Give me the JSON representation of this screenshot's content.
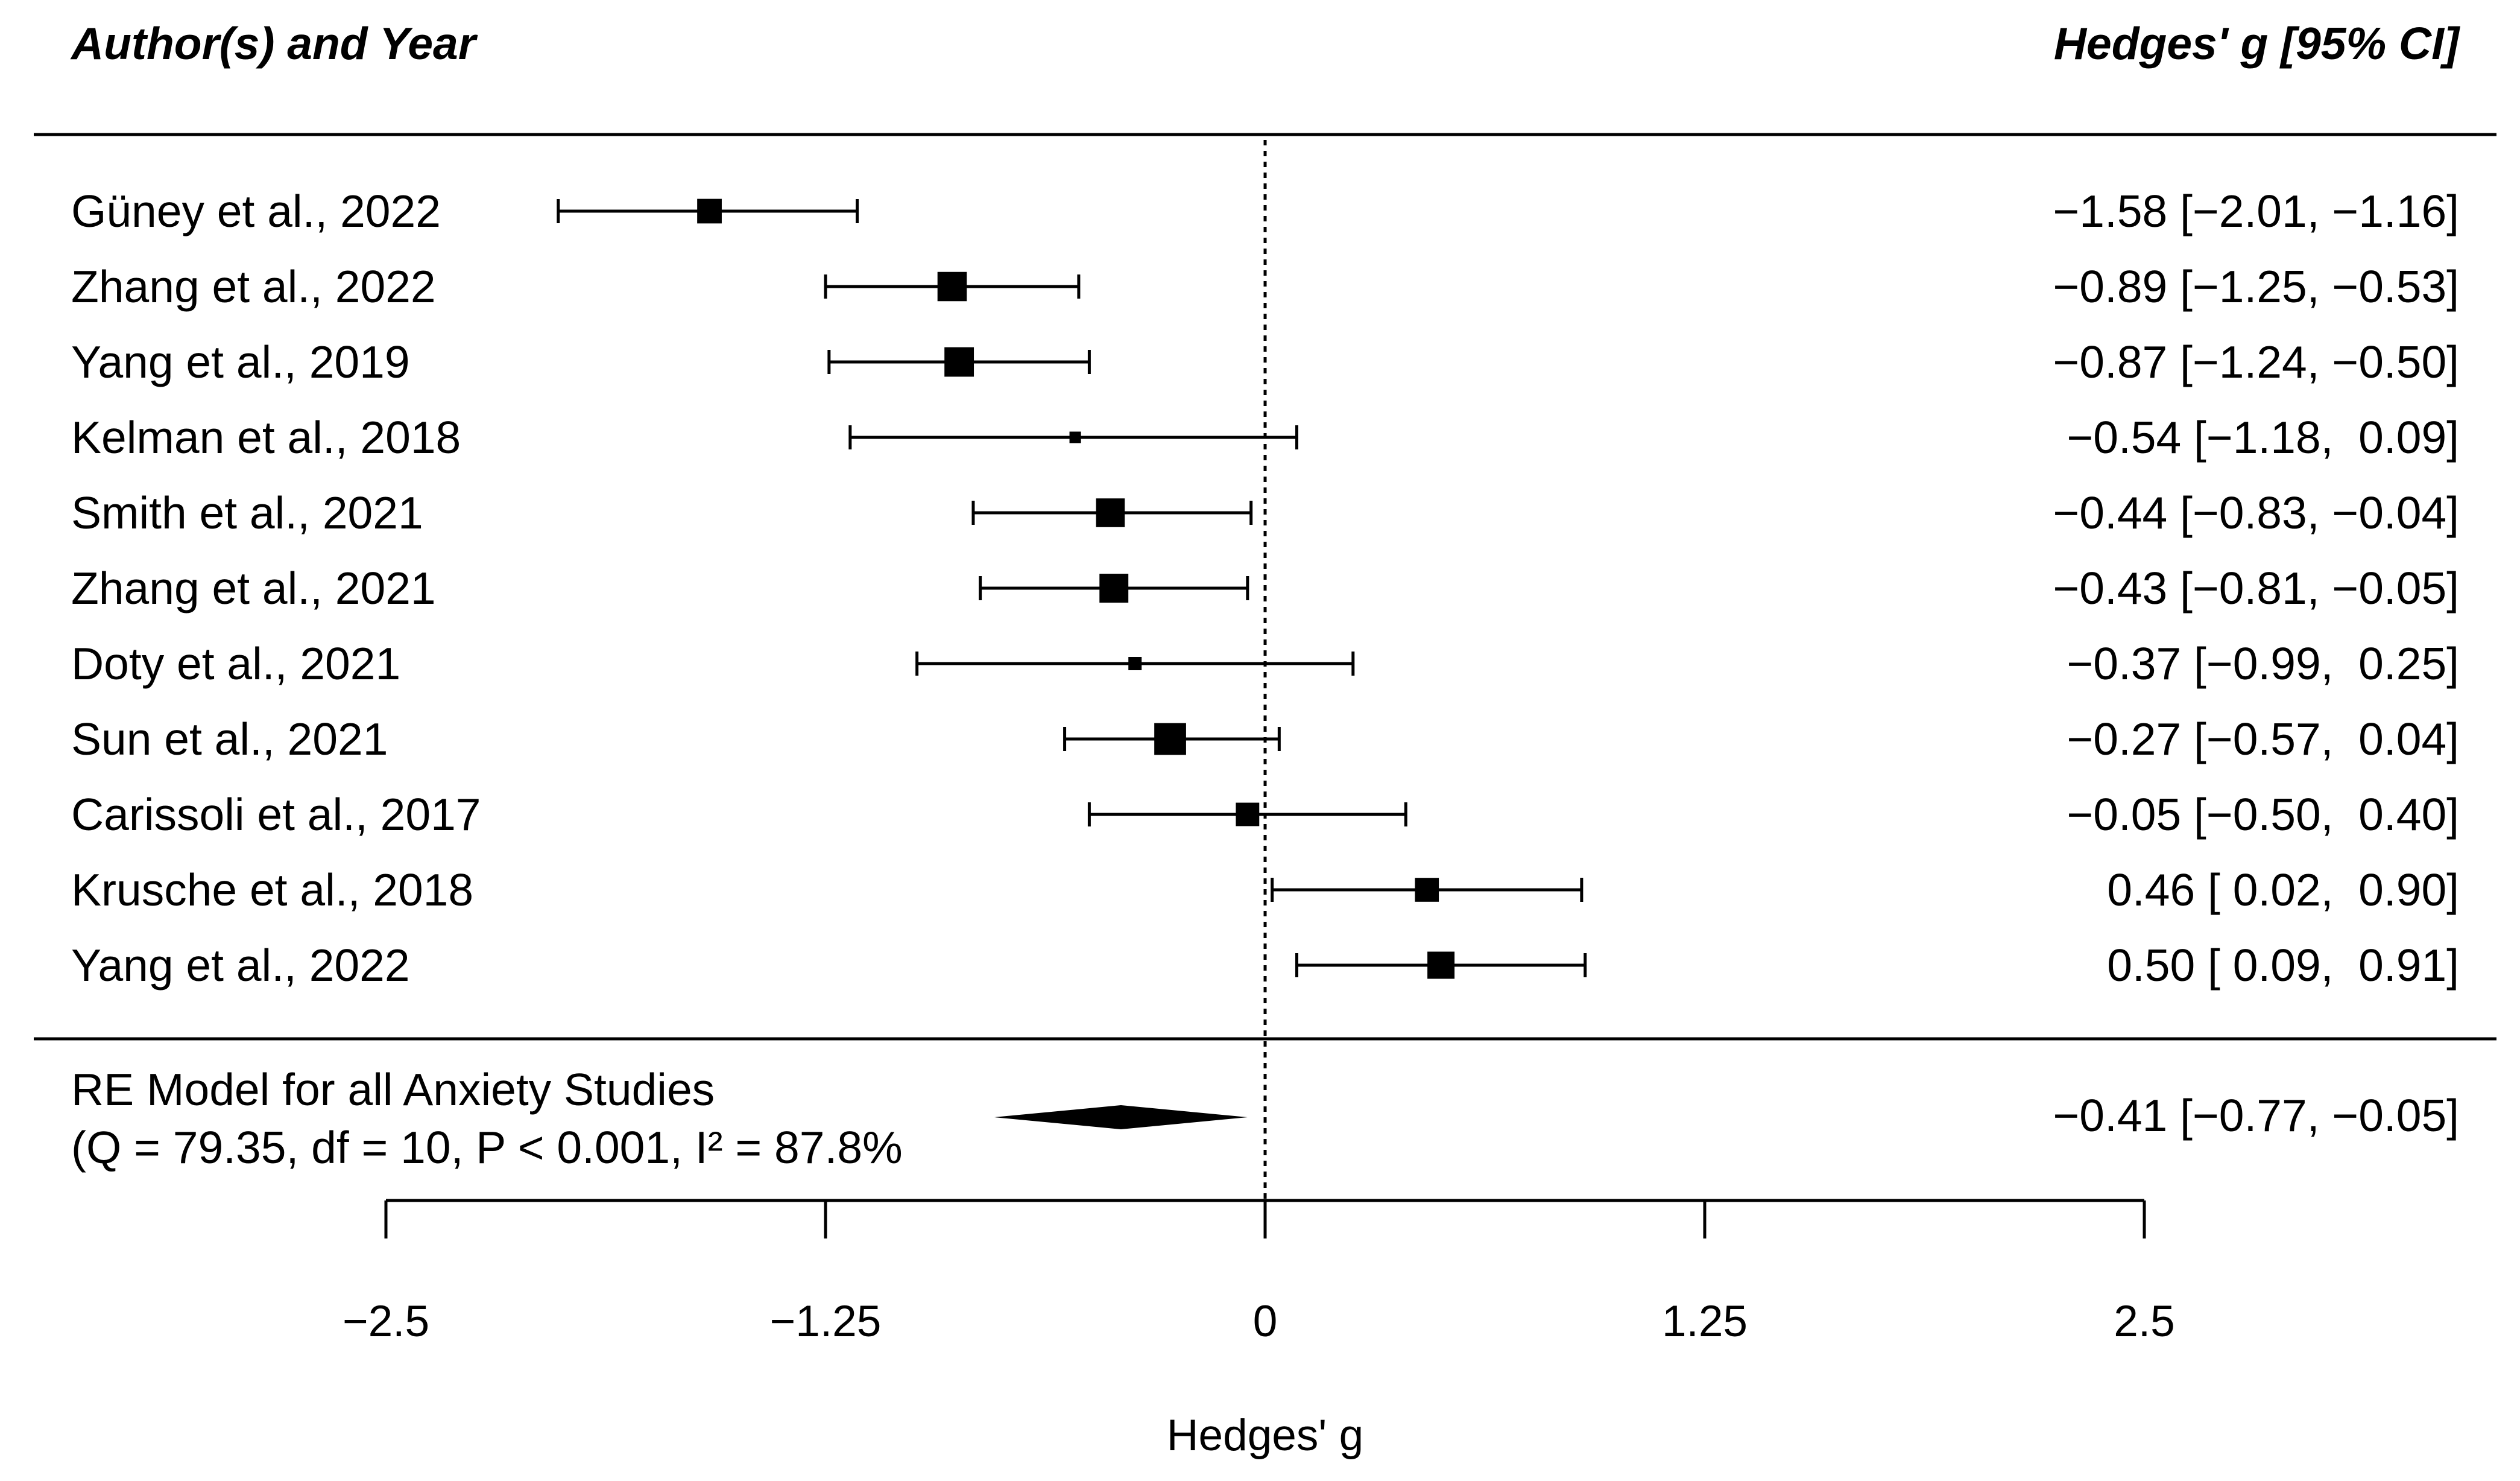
{
  "chart_data": {
    "type": "forest",
    "column_headers": {
      "study": "Author(s) and Year",
      "effect": "Hedges' g [95% CI]"
    },
    "studies": [
      {
        "label": "Güney et al., 2022",
        "estimate": -1.58,
        "lower": -2.01,
        "upper": -1.16,
        "weight": 5.5,
        "ci_text": "−1.58 [−2.01, −1.16]"
      },
      {
        "label": "Zhang et al., 2022",
        "estimate": -0.89,
        "lower": -1.25,
        "upper": -0.53,
        "weight": 7.8,
        "ci_text": "−0.89 [−1.25, −0.53]"
      },
      {
        "label": "Yang et al., 2019",
        "estimate": -0.87,
        "lower": -1.24,
        "upper": -0.5,
        "weight": 7.9,
        "ci_text": "−0.87 [−1.24, −0.50]"
      },
      {
        "label": "Kelman et al., 2018",
        "estimate": -0.54,
        "lower": -1.18,
        "upper": 0.09,
        "weight": 1.2,
        "ci_text": "−0.54 [−1.18,  0.09]"
      },
      {
        "label": "Smith et al., 2021",
        "estimate": -0.44,
        "lower": -0.83,
        "upper": -0.04,
        "weight": 7.5,
        "ci_text": "−0.44 [−0.83, −0.04]"
      },
      {
        "label": "Zhang et al., 2021",
        "estimate": -0.43,
        "lower": -0.81,
        "upper": -0.05,
        "weight": 7.6,
        "ci_text": "−0.43 [−0.81, −0.05]"
      },
      {
        "label": "Doty et al., 2021",
        "estimate": -0.37,
        "lower": -0.99,
        "upper": 0.25,
        "weight": 1.6,
        "ci_text": "−0.37 [−0.99,  0.25]"
      },
      {
        "label": "Sun et al., 2021",
        "estimate": -0.27,
        "lower": -0.57,
        "upper": 0.04,
        "weight": 9.2,
        "ci_text": "−0.27 [−0.57,  0.04]"
      },
      {
        "label": "Carissoli et al., 2017",
        "estimate": -0.05,
        "lower": -0.5,
        "upper": 0.4,
        "weight": 5.0,
        "ci_text": "−0.05 [−0.50,  0.40]"
      },
      {
        "label": "Krusche et al., 2018",
        "estimate": 0.46,
        "lower": 0.02,
        "upper": 0.9,
        "weight": 5.2,
        "ci_text": "0.46 [ 0.02,  0.90]"
      },
      {
        "label": "Yang et al., 2022",
        "estimate": 0.5,
        "lower": 0.09,
        "upper": 0.91,
        "weight": 6.7,
        "ci_text": "0.50 [ 0.09,  0.91]"
      }
    ],
    "summary": {
      "label_line1": "RE Model for all Anxiety Studies",
      "label_line2": "(Q = 79.35, df = 10, P < 0.001, I² = 87.8%",
      "estimate": -0.41,
      "lower": -0.77,
      "upper": -0.05,
      "ci_text": "−0.41 [−0.77, −0.05]"
    },
    "x_axis": {
      "label": "Hedges' g",
      "range": [
        -2.5,
        2.5
      ],
      "ticks": [
        -2.5,
        -1.25,
        0,
        1.25,
        2.5
      ],
      "tick_labels": [
        "−2.5",
        "−1.25",
        "0",
        "1.25",
        "2.5"
      ]
    },
    "reference_line": 0
  },
  "colors": {
    "ink": "#000000",
    "background": "#ffffff"
  }
}
